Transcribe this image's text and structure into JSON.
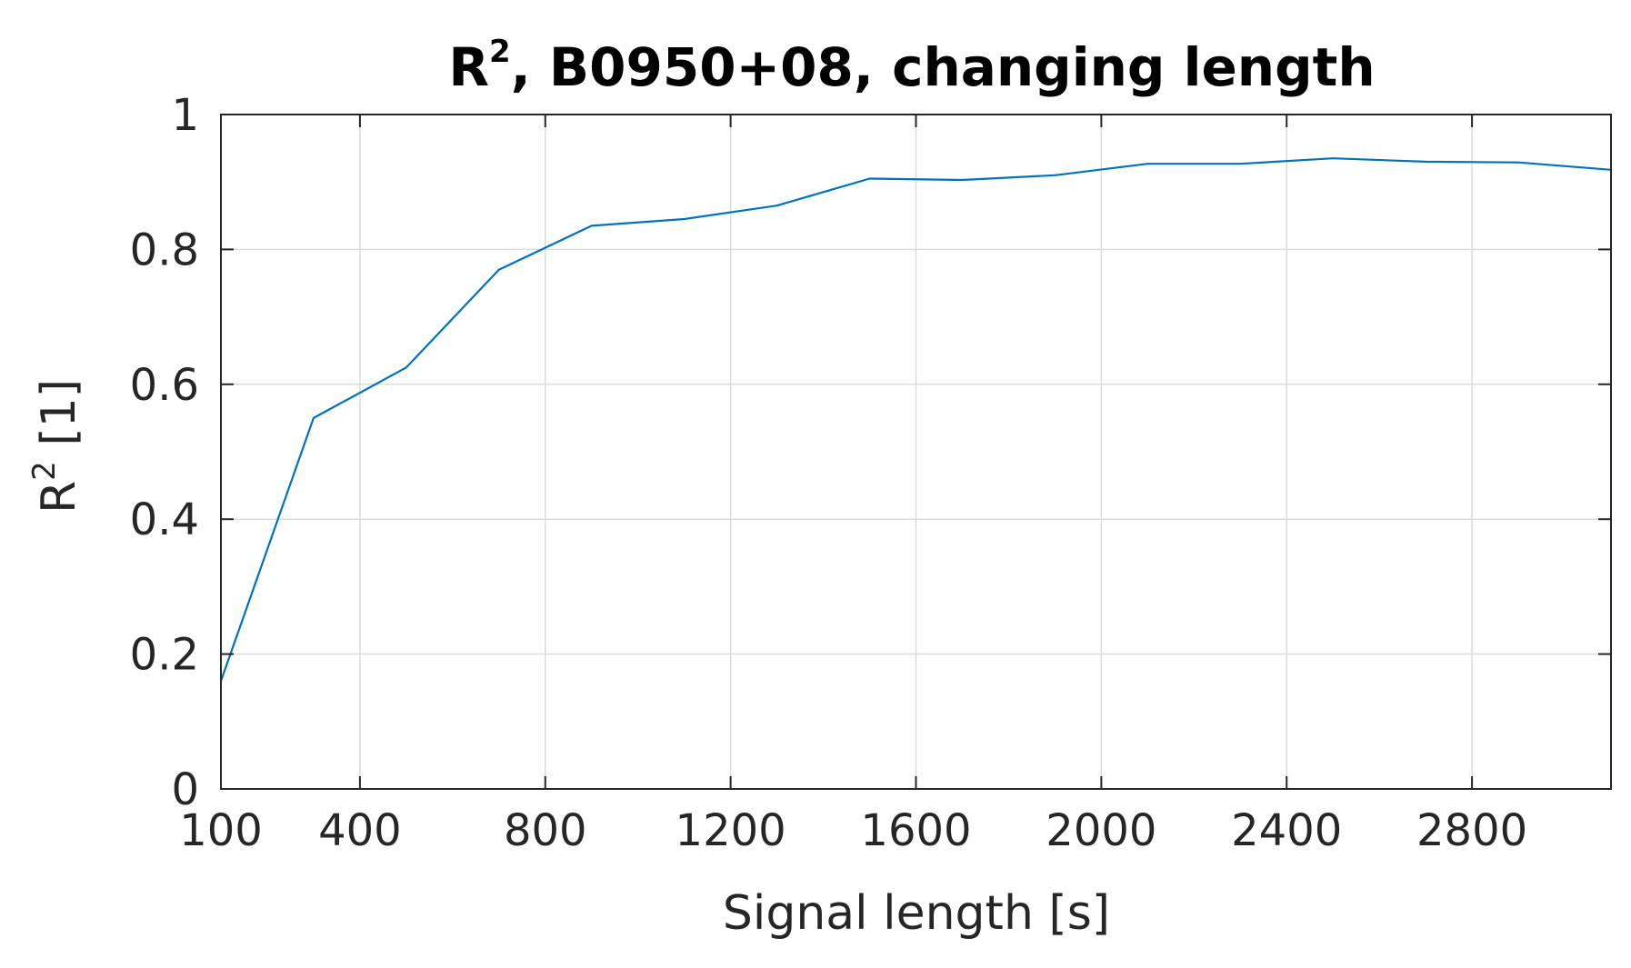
{
  "chart_data": {
    "type": "line",
    "title": {
      "main": "R",
      "superscript": "2",
      "rest": ", B0950+08, changing length"
    },
    "xlabel": "Signal length [s]",
    "ylabel": {
      "main": "R",
      "superscript": "2",
      "rest": " [1]"
    },
    "xlim": [
      100,
      3100
    ],
    "ylim": [
      0,
      1
    ],
    "x_ticks": [
      100,
      400,
      800,
      1200,
      1600,
      2000,
      2400,
      2800
    ],
    "y_ticks": [
      0,
      0.2,
      0.4,
      0.6,
      0.8,
      1
    ],
    "y_tick_labels": [
      "0",
      "0.2",
      "0.4",
      "0.6",
      "0.8",
      "1"
    ],
    "grid": true,
    "line_color": "#0072BD",
    "series": [
      {
        "x": [
          100,
          300,
          500,
          700,
          900,
          1100,
          1300,
          1500,
          1700,
          1900,
          2100,
          2300,
          2500,
          2700,
          2900,
          3100
        ],
        "y": [
          0.16,
          0.55,
          0.625,
          0.77,
          0.835,
          0.845,
          0.865,
          0.905,
          0.903,
          0.91,
          0.927,
          0.927,
          0.935,
          0.93,
          0.929,
          0.918
        ]
      }
    ]
  }
}
